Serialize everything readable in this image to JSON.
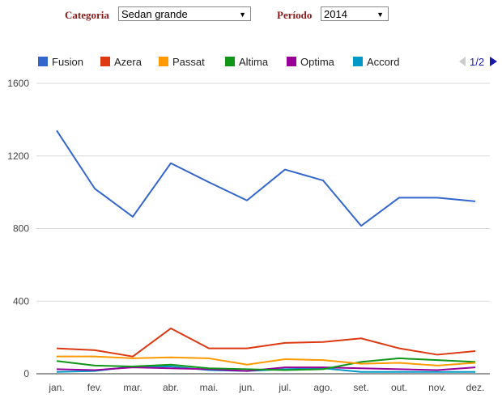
{
  "filters": {
    "category_label": "Categoria",
    "category_value": "Sedan grande",
    "period_label": "Período",
    "period_value": "2014"
  },
  "pager": {
    "text": "1/2"
  },
  "chart_data": {
    "type": "line",
    "title": "",
    "xlabel": "",
    "ylabel": "",
    "categories": [
      "jan.",
      "fev.",
      "mar.",
      "abr.",
      "mai.",
      "jun.",
      "jul.",
      "ago.",
      "set.",
      "out.",
      "nov.",
      "dez."
    ],
    "ylim": [
      0,
      1600
    ],
    "yticks": [
      0,
      400,
      800,
      1200,
      1600
    ],
    "grid": true,
    "legend": "top",
    "series": [
      {
        "name": "Fusion",
        "color": "#3366cc",
        "values": [
          1340,
          1020,
          865,
          1160,
          1055,
          955,
          1125,
          1065,
          815,
          970,
          970,
          950
        ]
      },
      {
        "name": "Azera",
        "color": "#dc3912",
        "values": [
          140,
          130,
          95,
          250,
          140,
          140,
          170,
          175,
          195,
          140,
          105,
          125
        ]
      },
      {
        "name": "Passat",
        "color": "#ff9900",
        "values": [
          95,
          95,
          85,
          90,
          85,
          50,
          80,
          75,
          55,
          60,
          45,
          60
        ]
      },
      {
        "name": "Altima",
        "color": "#109618",
        "values": [
          70,
          45,
          40,
          50,
          30,
          25,
          20,
          25,
          65,
          85,
          75,
          65
        ]
      },
      {
        "name": "Optima",
        "color": "#990099",
        "values": [
          25,
          20,
          35,
          30,
          25,
          15,
          35,
          35,
          30,
          25,
          20,
          35
        ]
      },
      {
        "name": "Accord",
        "color": "#0099c6",
        "values": [
          10,
          15,
          40,
          40,
          20,
          15,
          25,
          30,
          10,
          10,
          10,
          10
        ]
      }
    ]
  }
}
